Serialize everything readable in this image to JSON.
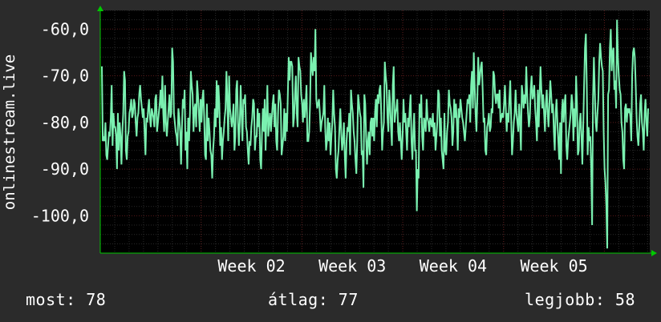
{
  "chart_data": {
    "type": "line",
    "ylabel": "onlinestream.live",
    "ylim": [
      -108,
      -56
    ],
    "yticks": [
      -60,
      -70,
      -80,
      -90,
      -100
    ],
    "yticklabels": [
      "-60,0",
      "-70,0",
      "-80,0",
      "-90,0",
      "-100,0"
    ],
    "xlim": [
      0,
      5.45
    ],
    "xticks": [
      1.5,
      2.5,
      3.5,
      4.5
    ],
    "xticklabels": [
      "Week 02",
      "Week 03",
      "Week 04",
      "Week 05"
    ],
    "grid": true,
    "series": [
      {
        "color": "#7af0b0",
        "values": [
          -68,
          -84,
          -83,
          -84,
          -80,
          -87,
          -88,
          -85,
          -82,
          -83,
          -79,
          -72,
          -85,
          -78,
          -81,
          -81,
          -83,
          -90,
          -78,
          -86,
          -80,
          -83,
          -89,
          -82,
          -78,
          -69,
          -71,
          -86,
          -88,
          -83,
          -82,
          -78,
          -77,
          -75,
          -79,
          -78,
          -75,
          -76,
          -80,
          -83,
          -79,
          -78,
          -74,
          -72,
          -75,
          -77,
          -79,
          -77,
          -82,
          -87,
          -79,
          -80,
          -77,
          -75,
          -79,
          -81,
          -77,
          -78,
          -79,
          -81,
          -75,
          -74,
          -82,
          -80,
          -78,
          -76,
          -73,
          -77,
          -70,
          -78,
          -82,
          -72,
          -80,
          -83,
          -80,
          -77,
          -74,
          -79,
          -78,
          -64,
          -67,
          -78,
          -80,
          -82,
          -83,
          -85,
          -77,
          -79,
          -82,
          -89,
          -81,
          -75,
          -77,
          -73,
          -86,
          -82,
          -90,
          -79,
          -84,
          -78,
          -69,
          -72,
          -74,
          -82,
          -77,
          -76,
          -81,
          -71,
          -74,
          -78,
          -82,
          -75,
          -80,
          -75,
          -73,
          -79,
          -87,
          -88,
          -76,
          -84,
          -79,
          -82,
          -86,
          -87,
          -92,
          -86,
          -83,
          -77,
          -81,
          -71,
          -79,
          -72,
          -76,
          -85,
          -81,
          -88,
          -84,
          -82,
          -79,
          -77,
          -69,
          -75,
          -84,
          -70,
          -77,
          -79,
          -81,
          -79,
          -76,
          -86,
          -83,
          -73,
          -71,
          -80,
          -85,
          -80,
          -72,
          -78,
          -84,
          -75,
          -76,
          -74,
          -81,
          -82,
          -86,
          -89,
          -84,
          -85,
          -81,
          -79,
          -75,
          -76,
          -86,
          -83,
          -83,
          -77,
          -81,
          -78,
          -88,
          -90,
          -82,
          -77,
          -82,
          -75,
          -86,
          -79,
          -72,
          -83,
          -80,
          -78,
          -82,
          -79,
          -76,
          -74,
          -81,
          -76,
          -84,
          -86,
          -78,
          -73,
          -74,
          -76,
          -87,
          -85,
          -83,
          -77,
          -84,
          -78,
          -82,
          -74,
          -66,
          -71,
          -67,
          -67,
          -68,
          -81,
          -79,
          -74,
          -70,
          -78,
          -81,
          -66,
          -68,
          -69,
          -74,
          -76,
          -80,
          -75,
          -79,
          -76,
          -72,
          -84,
          -84,
          -82,
          -76,
          -65,
          -68,
          -70,
          -66,
          -69,
          -60,
          -75,
          -77,
          -76,
          -75,
          -78,
          -82,
          -80,
          -79,
          -78,
          -72,
          -81,
          -86,
          -84,
          -79,
          -84,
          -80,
          -87,
          -83,
          -80,
          -73,
          -78,
          -81,
          -90,
          -92,
          -88,
          -86,
          -81,
          -77,
          -82,
          -86,
          -84,
          -80,
          -87,
          -92,
          -84,
          -81,
          -82,
          -78,
          -87,
          -73,
          -76,
          -78,
          -82,
          -84,
          -88,
          -91,
          -84,
          -74,
          -76,
          -78,
          -79,
          -87,
          -86,
          -94,
          -74,
          -76,
          -83,
          -89,
          -84,
          -82,
          -87,
          -80,
          -79,
          -83,
          -79,
          -84,
          -78,
          -75,
          -81,
          -74,
          -76,
          -73,
          -72,
          -78,
          -86,
          -82,
          -80,
          -67,
          -70,
          -72,
          -79,
          -82,
          -73,
          -76,
          -81,
          -85,
          -72,
          -68,
          -80,
          -78,
          -77,
          -75,
          -82,
          -84,
          -80,
          -84,
          -88,
          -83,
          -75,
          -80,
          -78,
          -82,
          -86,
          -79,
          -81,
          -77,
          -74,
          -84,
          -88,
          -82,
          -78,
          -86,
          -86,
          -99,
          -90,
          -92,
          -76,
          -79,
          -74,
          -83,
          -86,
          -79,
          -80,
          -82,
          -75,
          -79,
          -80,
          -82,
          -79,
          -80,
          -81,
          -78,
          -83,
          -80,
          -86,
          -83,
          -80,
          -73,
          -74,
          -83,
          -79,
          -86,
          -88,
          -90,
          -78,
          -86,
          -87,
          -82,
          -80,
          -73,
          -76,
          -77,
          -79,
          -85,
          -82,
          -75,
          -79,
          -76,
          -80,
          -86,
          -77,
          -79,
          -75,
          -77,
          -79,
          -80,
          -82,
          -84,
          -81,
          -78,
          -75,
          -76,
          -74,
          -80,
          -72,
          -69,
          -77,
          -65,
          -72,
          -78,
          -82,
          -75,
          -66,
          -72,
          -70,
          -68,
          -67,
          -73,
          -80,
          -79,
          -86,
          -87,
          -81,
          -80,
          -78,
          -82,
          -81,
          -77,
          -78,
          -69,
          -70,
          -74,
          -76,
          -74,
          -74,
          -77,
          -73,
          -80,
          -79,
          -78,
          -79,
          -76,
          -72,
          -77,
          -82,
          -78,
          -80,
          -75,
          -71,
          -79,
          -87,
          -84,
          -80,
          -78,
          -73,
          -78,
          -80,
          -82,
          -76,
          -80,
          -86,
          -72,
          -74,
          -77,
          -74,
          -76,
          -68,
          -74,
          -78,
          -81,
          -79,
          -73,
          -70,
          -75,
          -74,
          -72,
          -77,
          -80,
          -84,
          -73,
          -81,
          -74,
          -68,
          -73,
          -77,
          -74,
          -78,
          -82,
          -76,
          -73,
          -78,
          -81,
          -76,
          -71,
          -74,
          -78,
          -76,
          -82,
          -86,
          -78,
          -75,
          -80,
          -84,
          -88,
          -80,
          -91,
          -78,
          -75,
          -80,
          -76,
          -74,
          -85,
          -88,
          -84,
          -82,
          -80,
          -78,
          -74,
          -76,
          -84,
          -77,
          -81,
          -70,
          -76,
          -87,
          -86,
          -80,
          -78,
          -83,
          -89,
          -81,
          -72,
          -64,
          -61,
          -72,
          -87,
          -81,
          -84,
          -83,
          -90,
          -102,
          -75,
          -66,
          -73,
          -80,
          -82,
          -78,
          -75,
          -67,
          -63,
          -66,
          -68,
          -69,
          -82,
          -90,
          -93,
          -98,
          -107,
          -74,
          -73,
          -64,
          -60,
          -69,
          -65,
          -64,
          -73,
          -71,
          -77,
          -58,
          -66,
          -70,
          -73,
          -74,
          -80,
          -82,
          -88,
          -90,
          -77,
          -76,
          -80,
          -77,
          -78,
          -77,
          -79,
          -84,
          -70,
          -65,
          -64,
          -66,
          -72,
          -79,
          -83,
          -85,
          -81,
          -76,
          -74,
          -80,
          -82,
          -86,
          -78,
          -75,
          -80,
          -83,
          -77
        ]
      }
    ]
  },
  "footer": {
    "current": "most: 78",
    "average": "átlag: 77",
    "best": "legjobb: 58"
  },
  "colors": {
    "background": "#2b2b2b",
    "plot_background": "#000000",
    "line": "#7af0b0",
    "grid_major": "#5a1a1a",
    "grid_minor": "#2a2a2a",
    "axis_arrow": "#00c800",
    "text": "#ffffff"
  }
}
